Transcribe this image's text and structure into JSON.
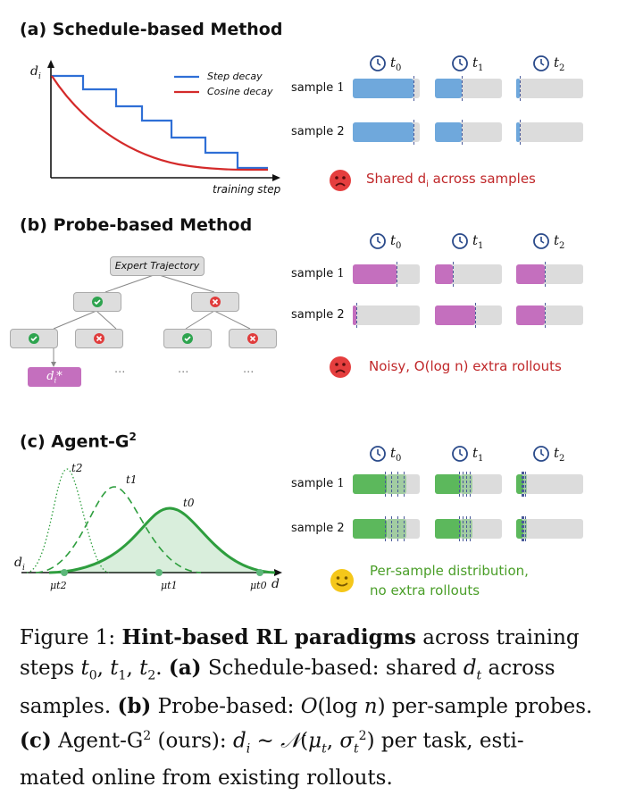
{
  "panel_a": {
    "title": "(a) Schedule-based Method",
    "y_label": "d",
    "y_label_sub": "i",
    "x_label": "training step",
    "legend_step": "Step decay",
    "legend_cosine": "Cosine decay",
    "color_step": "#2f6fd6",
    "color_cosine": "#d42a2a",
    "bar_color": "#6fa8dc",
    "note_prefix": "Shared d",
    "note_sub": "i",
    "note_suffix": " across samples",
    "note_color": "#c0282a"
  },
  "panel_b": {
    "title": "(b) Probe-based Method",
    "root_label": "Expert Trajectory",
    "leaf_label": "d",
    "leaf_sub": "i",
    "leaf_sup": "*",
    "ellipsis": "···",
    "bar_color": "#c46fbe",
    "note": "Noisy, O(log n) extra rollouts",
    "note_color": "#c0282a"
  },
  "panel_c": {
    "title_prefix": "(c) Agent-G",
    "title_sup": "2",
    "bar_color": "#5cb85c",
    "curve_color": "#2e9e3e",
    "curve_labels": [
      "t2",
      "t1",
      "t0"
    ],
    "mu_labels": [
      "μt2",
      "μt1",
      "μt0"
    ],
    "axis_d": "d",
    "axis_di": "d",
    "axis_di_sub": "i",
    "note_line1": "Per-sample distribution,",
    "note_line2": "no extra rollouts",
    "note_color": "#4a9e28"
  },
  "clocks": [
    {
      "t": "t",
      "sub": "0"
    },
    {
      "t": "t",
      "sub": "1"
    },
    {
      "t": "t",
      "sub": "2"
    }
  ],
  "samples": {
    "sample1_a": "sample",
    "sample1_num": "1",
    "sample2": "sample 2"
  },
  "caption": {
    "fig": "Figure 1: ",
    "bold": "Hint-based RL paradigms",
    "rest1": " across training",
    "line2a": "steps ",
    "line2b": ". ",
    "a": "(a)",
    "line2c": " Schedule-based:  shared ",
    "line2d": " across",
    "line3a": "samples. ",
    "b": "(b)",
    "line3b": " Probe-based: ",
    "line3c": " per-sample probes.",
    "c": "(c)",
    "line4a": " Agent-G",
    "line4sup": "2",
    "line4b": " (ours):  ",
    "line4c": " per task, esti-",
    "line5": "mated online from existing rollouts."
  },
  "chart_data": {
    "type": "diagram-bars",
    "a_fill_fractions": [
      [
        0.9,
        0.9
      ],
      [
        0.4,
        0.4
      ],
      [
        0.05,
        0.05
      ]
    ],
    "b_fill_fractions": [
      [
        0.65,
        0.05
      ],
      [
        0.27,
        0.6
      ],
      [
        0.42,
        0.42
      ]
    ],
    "c_fill_fractions": [
      [
        0.5,
        0.5
      ],
      [
        0.38,
        0.38
      ],
      [
        0.1,
        0.1
      ]
    ]
  }
}
